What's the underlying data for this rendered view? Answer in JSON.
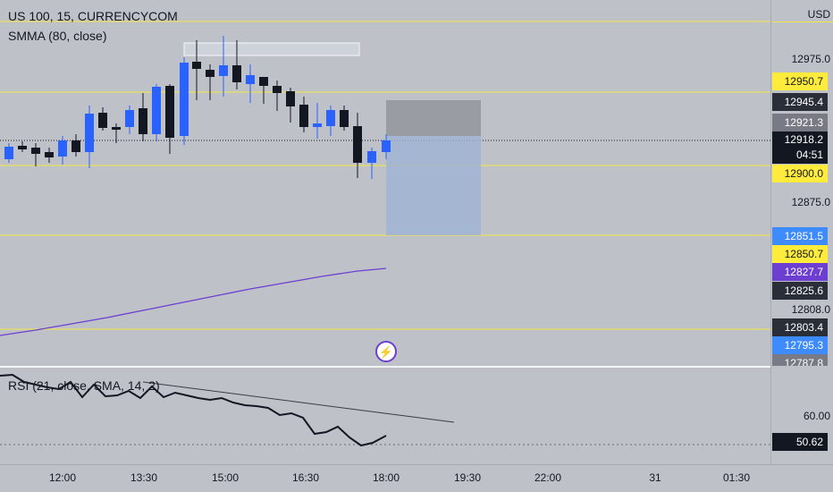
{
  "header": {
    "symbol": "US 100, 15, CURRENCYCOM",
    "indicator": "SMMA (80, close)"
  },
  "rsi": {
    "legend": "RSI (21, close, SMA, 14, 2)",
    "current": "50.62",
    "level_60": "60.00"
  },
  "price_axis": {
    "currency": "USD",
    "labels": [
      "12975.0",
      "12875.0",
      "12808.0"
    ],
    "tags": [
      {
        "text": "12950.7",
        "bg": "#ffeb3b",
        "fg": "#131722"
      },
      {
        "text": "12945.4",
        "bg": "#2a2e39",
        "fg": "#ffffff"
      },
      {
        "text": "12921.3",
        "bg": "#787b86",
        "fg": "#ffffff"
      },
      {
        "text": "12900.0",
        "bg": "#ffeb3b",
        "fg": "#131722"
      },
      {
        "text": "12851.5",
        "bg": "#3d8bfd",
        "fg": "#ffffff"
      },
      {
        "text": "12850.7",
        "bg": "#ffeb3b",
        "fg": "#131722"
      },
      {
        "text": "12827.7",
        "bg": "#6c3fd1",
        "fg": "#ffffff"
      },
      {
        "text": "12825.6",
        "bg": "#2a2e39",
        "fg": "#ffffff"
      },
      {
        "text": "12803.4",
        "bg": "#2a2e39",
        "fg": "#ffffff"
      },
      {
        "text": "12795.3",
        "bg": "#3d8bfd",
        "fg": "#ffffff"
      },
      {
        "text": "12787.8",
        "bg": "#787b86",
        "fg": "#ffffff"
      }
    ],
    "current_price": "12918.2",
    "countdown": "04:51"
  },
  "time_axis": {
    "labels": [
      "12:00",
      "13:30",
      "15:00",
      "16:30",
      "18:00",
      "19:30",
      "22:00",
      "31",
      "01:30"
    ]
  },
  "colors": {
    "bull": "#2962ff",
    "bear": "#131722",
    "hline": "#f5e642",
    "smma": "#6c3fd1",
    "rsi": "#131722"
  },
  "icons": {
    "alert": "lightning-alert-icon"
  }
}
